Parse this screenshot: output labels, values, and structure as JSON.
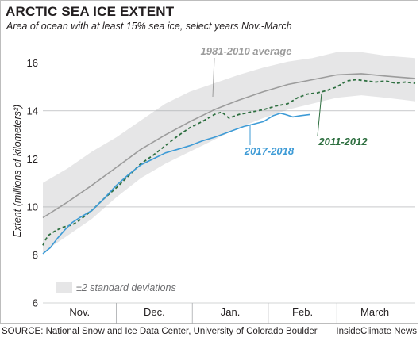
{
  "chart_data": {
    "type": "area",
    "title": "ARCTIC SEA ICE EXTENT",
    "subtitle": "Area of ocean with at least 15% sea ice, select years Nov.-March",
    "ylabel": "Extent (millions of kilometers²)",
    "xlabel": "",
    "ylim": [
      6,
      17
    ],
    "yticks": [
      6,
      8,
      10,
      12,
      14,
      16
    ],
    "xlim": [
      0,
      152
    ],
    "x_categories": [
      {
        "label": "Nov.",
        "center": 15
      },
      {
        "label": "Dec.",
        "center": 45.5
      },
      {
        "label": "Jan.",
        "center": 76.5
      },
      {
        "label": "Feb.",
        "center": 106
      },
      {
        "label": "March",
        "center": 135.5
      }
    ],
    "month_boundaries": [
      30,
      61,
      92,
      120
    ],
    "grid": true,
    "band": {
      "name": "±2 standard deviations",
      "color": "#e6e6e7",
      "x": [
        0,
        10,
        20,
        30,
        40,
        50,
        60,
        70,
        80,
        90,
        100,
        110,
        120,
        130,
        140,
        152
      ],
      "upper": [
        11.0,
        11.6,
        12.3,
        12.9,
        13.6,
        14.3,
        14.8,
        15.15,
        15.5,
        15.8,
        16.05,
        16.2,
        16.45,
        16.45,
        16.3,
        16.2
      ],
      "lower": [
        8.1,
        8.8,
        9.5,
        10.4,
        11.2,
        11.8,
        12.3,
        12.8,
        13.3,
        13.7,
        14.05,
        14.3,
        14.55,
        14.65,
        14.55,
        14.4
      ]
    },
    "series": [
      {
        "name": "1981-2010 average",
        "color": "#9c9c9c",
        "dashed": false,
        "x": [
          0,
          10,
          20,
          30,
          40,
          50,
          60,
          70,
          80,
          90,
          100,
          110,
          120,
          130,
          140,
          152
        ],
        "values": [
          9.55,
          10.2,
          10.9,
          11.65,
          12.4,
          13.0,
          13.55,
          14.05,
          14.45,
          14.8,
          15.1,
          15.3,
          15.5,
          15.55,
          15.45,
          15.35
        ]
      },
      {
        "name": "2011-2012",
        "color": "#2e6f40",
        "dashed": true,
        "x": [
          0,
          2,
          5,
          8,
          12,
          15,
          20,
          25,
          30,
          35,
          40,
          45,
          50,
          55,
          60,
          65,
          70,
          73,
          76,
          80,
          85,
          90,
          95,
          100,
          104,
          108,
          112,
          116,
          120,
          124,
          128,
          132,
          136,
          140,
          144,
          148,
          152
        ],
        "values": [
          8.4,
          8.8,
          9.0,
          9.15,
          9.25,
          9.45,
          9.85,
          10.35,
          10.8,
          11.3,
          11.8,
          12.15,
          12.55,
          12.95,
          13.3,
          13.55,
          13.85,
          13.95,
          13.7,
          13.85,
          13.95,
          14.05,
          14.2,
          14.3,
          14.55,
          14.7,
          14.75,
          14.85,
          15.0,
          15.25,
          15.3,
          15.25,
          15.2,
          15.25,
          15.15,
          15.2,
          15.15
        ]
      },
      {
        "name": "2017-2018",
        "color": "#3e9bd6",
        "dashed": false,
        "x": [
          0,
          3,
          6,
          9,
          12,
          15,
          20,
          25,
          30,
          35,
          40,
          45,
          50,
          55,
          60,
          65,
          70,
          74,
          78,
          82,
          86,
          90,
          94,
          97,
          99,
          102,
          105,
          109
        ],
        "values": [
          8.05,
          8.3,
          8.7,
          9.05,
          9.35,
          9.55,
          9.85,
          10.35,
          10.9,
          11.35,
          11.75,
          12.0,
          12.25,
          12.4,
          12.55,
          12.75,
          12.9,
          13.05,
          13.2,
          13.35,
          13.45,
          13.55,
          13.8,
          13.9,
          13.85,
          13.75,
          13.8,
          13.85
        ]
      }
    ],
    "legend_placement": "bottom-left"
  },
  "footer": {
    "source": "SOURCE: National Snow and Ice Data Center, University of Colorado Boulder",
    "credit": "InsideClimate News"
  }
}
